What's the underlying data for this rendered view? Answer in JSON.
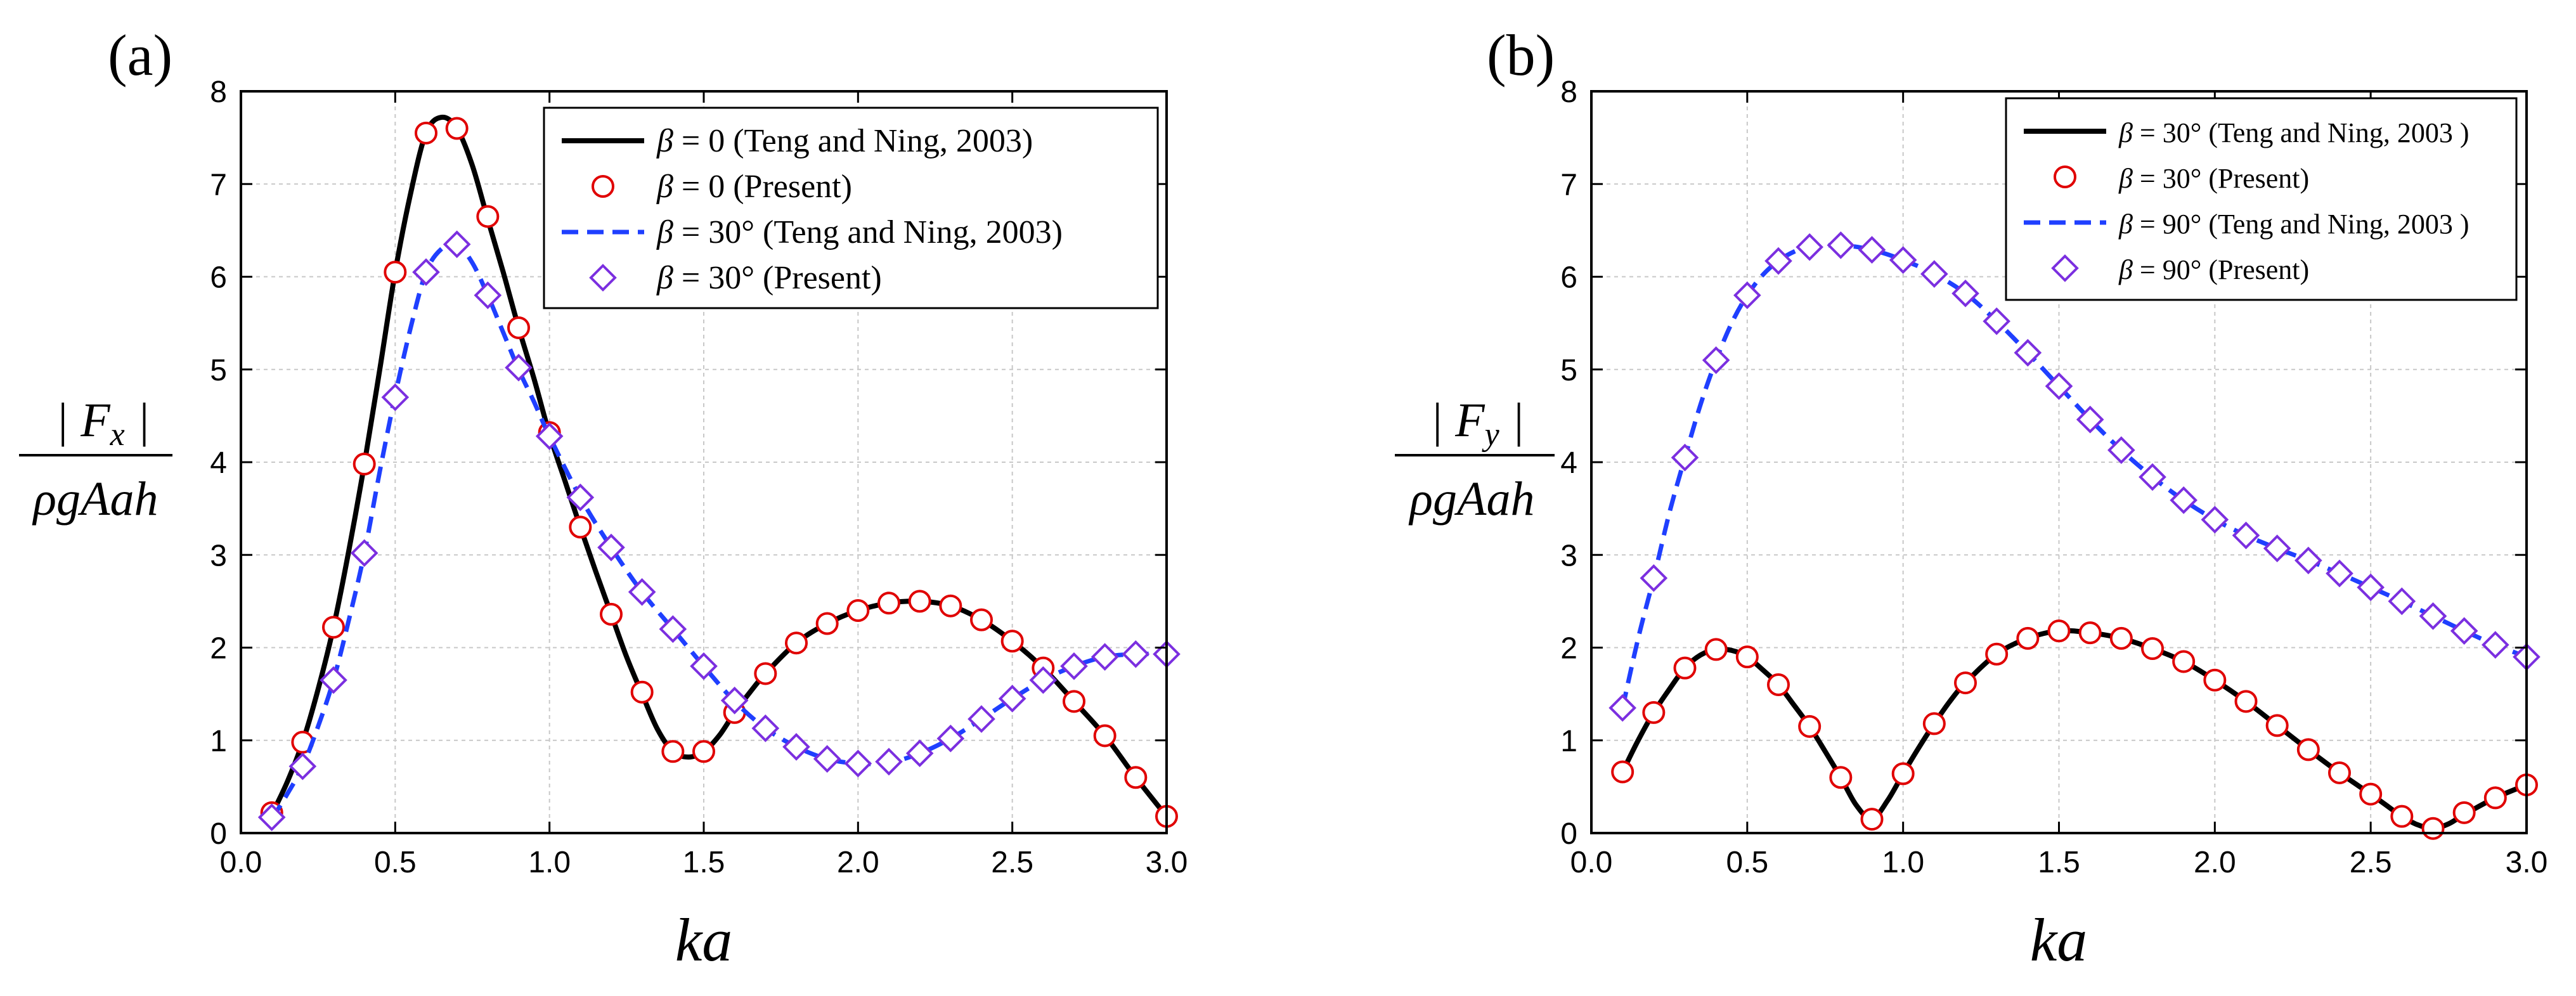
{
  "chart_data": [
    {
      "type": "line",
      "panel_label": "(a)",
      "xlabel": "ka",
      "ylabel": {
        "numerator": "| F",
        "subscript": "x",
        "numerator_end": " |",
        "denominator": "ρgAah"
      },
      "xlim": [
        0.0,
        3.0
      ],
      "ylim": [
        0,
        8
      ],
      "xticks": [
        "0.0",
        "0.5",
        "1.0",
        "1.5",
        "2.0",
        "2.5",
        "3.0"
      ],
      "yticks": [
        "0",
        "1",
        "2",
        "3",
        "4",
        "5",
        "6",
        "7",
        "8"
      ],
      "grid": true,
      "legend_position": "top-right",
      "legend": [
        {
          "symbol": "β",
          "text": " = 0 (Teng and Ning, 2003)"
        },
        {
          "symbol": "β",
          "text": " = 0 (Present)"
        },
        {
          "symbol": "β",
          "text": " = 30° (Teng and Ning, 2003)"
        },
        {
          "symbol": "β",
          "text": " = 30° (Present)"
        }
      ],
      "series": [
        {
          "name": "β = 0 (Teng and Ning, 2003)",
          "style": "line",
          "color": "#000000",
          "x": [
            0.1,
            0.15,
            0.2,
            0.25,
            0.3,
            0.35,
            0.4,
            0.45,
            0.5,
            0.55,
            0.6,
            0.65,
            0.7,
            0.75,
            0.8,
            0.85,
            0.9,
            0.95,
            1.0,
            1.05,
            1.1,
            1.15,
            1.2,
            1.25,
            1.3,
            1.35,
            1.4,
            1.45,
            1.5,
            1.55,
            1.6,
            1.65,
            1.7,
            1.8,
            1.9,
            2.0,
            2.1,
            2.2,
            2.3,
            2.4,
            2.5,
            2.6,
            2.7,
            2.8,
            2.9,
            3.0
          ],
          "y": [
            0.2,
            0.55,
            0.98,
            1.55,
            2.22,
            3.05,
            3.98,
            5.0,
            6.05,
            6.9,
            7.55,
            7.72,
            7.6,
            7.2,
            6.62,
            6.05,
            5.45,
            4.9,
            4.3,
            3.8,
            3.3,
            2.82,
            2.36,
            1.9,
            1.5,
            1.12,
            0.88,
            0.82,
            0.88,
            1.05,
            1.3,
            1.52,
            1.72,
            2.05,
            2.26,
            2.4,
            2.48,
            2.5,
            2.45,
            2.3,
            2.07,
            1.78,
            1.42,
            1.05,
            0.6,
            0.18
          ]
        },
        {
          "name": "β = 0 (Present)",
          "style": "circle",
          "color": "#e00000",
          "x": [
            0.1,
            0.2,
            0.3,
            0.4,
            0.5,
            0.6,
            0.7,
            0.8,
            0.9,
            1.0,
            1.1,
            1.2,
            1.3,
            1.4,
            1.5,
            1.6,
            1.7,
            1.8,
            1.9,
            2.0,
            2.1,
            2.2,
            2.3,
            2.4,
            2.5,
            2.6,
            2.7,
            2.8,
            2.9,
            3.0
          ],
          "y": [
            0.22,
            0.98,
            2.22,
            3.98,
            6.05,
            7.55,
            7.6,
            6.65,
            5.45,
            4.32,
            3.3,
            2.36,
            1.52,
            0.88,
            0.88,
            1.3,
            1.72,
            2.05,
            2.26,
            2.4,
            2.48,
            2.5,
            2.45,
            2.3,
            2.07,
            1.78,
            1.42,
            1.05,
            0.6,
            0.18
          ]
        },
        {
          "name": "β = 30° (Teng and Ning, 2003)",
          "style": "dash",
          "color": "#1f3fff",
          "x": [
            0.1,
            0.15,
            0.2,
            0.25,
            0.3,
            0.35,
            0.4,
            0.45,
            0.5,
            0.55,
            0.6,
            0.65,
            0.7,
            0.75,
            0.8,
            0.85,
            0.9,
            0.95,
            1.0,
            1.1,
            1.2,
            1.3,
            1.4,
            1.5,
            1.6,
            1.7,
            1.8,
            1.9,
            2.0,
            2.1,
            2.2,
            2.3,
            2.4,
            2.5,
            2.6,
            2.7,
            2.8,
            2.9,
            3.0
          ],
          "y": [
            0.15,
            0.42,
            0.72,
            1.15,
            1.65,
            2.3,
            3.02,
            3.9,
            4.72,
            5.45,
            6.05,
            6.3,
            6.35,
            6.15,
            5.8,
            5.4,
            5.0,
            4.65,
            4.28,
            3.62,
            3.08,
            2.6,
            2.2,
            1.8,
            1.42,
            1.13,
            0.93,
            0.8,
            0.75,
            0.76,
            0.86,
            1.02,
            1.23,
            1.45,
            1.65,
            1.8,
            1.9,
            1.93,
            1.93
          ]
        },
        {
          "name": "β = 30° (Present)",
          "style": "diamond",
          "color": "#7b2fe0",
          "x": [
            0.1,
            0.2,
            0.3,
            0.4,
            0.5,
            0.6,
            0.7,
            0.8,
            0.9,
            1.0,
            1.1,
            1.2,
            1.3,
            1.4,
            1.5,
            1.6,
            1.7,
            1.8,
            1.9,
            2.0,
            2.1,
            2.2,
            2.3,
            2.4,
            2.5,
            2.6,
            2.7,
            2.8,
            2.9,
            3.0
          ],
          "y": [
            0.17,
            0.72,
            1.65,
            3.02,
            4.7,
            6.05,
            6.35,
            5.8,
            5.02,
            4.28,
            3.62,
            3.08,
            2.6,
            2.2,
            1.8,
            1.43,
            1.13,
            0.93,
            0.8,
            0.75,
            0.77,
            0.86,
            1.02,
            1.23,
            1.45,
            1.65,
            1.8,
            1.9,
            1.93,
            1.93
          ]
        }
      ]
    },
    {
      "type": "line",
      "panel_label": "(b)",
      "xlabel": "ka",
      "ylabel": {
        "numerator": "| F",
        "subscript": "y",
        "numerator_end": " |",
        "denominator": "ρgAah"
      },
      "xlim": [
        0.0,
        3.0
      ],
      "ylim": [
        0,
        8
      ],
      "xticks": [
        "0.0",
        "0.5",
        "1.0",
        "1.5",
        "2.0",
        "2.5",
        "3.0"
      ],
      "yticks": [
        "0",
        "1",
        "2",
        "3",
        "4",
        "5",
        "6",
        "7",
        "8"
      ],
      "grid": true,
      "legend_position": "top-right",
      "legend": [
        {
          "symbol": "β",
          "text": " = 30° (Teng and Ning, 2003 )"
        },
        {
          "symbol": "β",
          "text": " = 30° (Present)"
        },
        {
          "symbol": "β",
          "text": " = 90° (Teng and Ning, 2003 )"
        },
        {
          "symbol": "β",
          "text": " = 90° (Present)"
        }
      ],
      "series": [
        {
          "name": "β = 30° (Teng and Ning, 2003 )",
          "style": "line",
          "color": "#000000",
          "x": [
            0.1,
            0.15,
            0.2,
            0.25,
            0.3,
            0.35,
            0.4,
            0.45,
            0.5,
            0.55,
            0.6,
            0.65,
            0.7,
            0.75,
            0.8,
            0.85,
            0.9,
            0.95,
            1.0,
            1.05,
            1.1,
            1.15,
            1.2,
            1.3,
            1.4,
            1.5,
            1.6,
            1.7,
            1.8,
            1.9,
            2.0,
            2.1,
            2.2,
            2.3,
            2.4,
            2.5,
            2.55,
            2.6,
            2.65,
            2.7,
            2.75,
            2.8,
            2.9,
            3.0
          ],
          "y": [
            0.66,
            1.0,
            1.3,
            1.55,
            1.78,
            1.92,
            1.98,
            1.97,
            1.9,
            1.76,
            1.6,
            1.38,
            1.15,
            0.88,
            0.6,
            0.3,
            0.15,
            0.35,
            0.64,
            0.92,
            1.18,
            1.42,
            1.62,
            1.93,
            2.1,
            2.18,
            2.16,
            2.1,
            1.99,
            1.85,
            1.65,
            1.42,
            1.16,
            0.9,
            0.65,
            0.42,
            0.3,
            0.18,
            0.09,
            0.05,
            0.1,
            0.2,
            0.38,
            0.52
          ]
        },
        {
          "name": "β = 30° (Present)",
          "style": "circle",
          "color": "#e00000",
          "x": [
            0.1,
            0.2,
            0.3,
            0.4,
            0.5,
            0.6,
            0.7,
            0.8,
            0.9,
            1.0,
            1.1,
            1.2,
            1.3,
            1.4,
            1.5,
            1.6,
            1.7,
            1.8,
            1.9,
            2.0,
            2.1,
            2.2,
            2.3,
            2.4,
            2.5,
            2.6,
            2.7,
            2.8,
            2.9,
            3.0
          ],
          "y": [
            0.66,
            1.3,
            1.78,
            1.98,
            1.9,
            1.6,
            1.15,
            0.6,
            0.15,
            0.64,
            1.18,
            1.62,
            1.93,
            2.1,
            2.18,
            2.16,
            2.1,
            1.99,
            1.85,
            1.65,
            1.42,
            1.16,
            0.9,
            0.65,
            0.42,
            0.18,
            0.05,
            0.22,
            0.38,
            0.52
          ]
        },
        {
          "name": "β = 90° (Teng and Ning, 2003 )",
          "style": "dash",
          "color": "#1f3fff",
          "x": [
            0.1,
            0.15,
            0.2,
            0.25,
            0.3,
            0.35,
            0.4,
            0.45,
            0.5,
            0.55,
            0.6,
            0.65,
            0.7,
            0.8,
            0.9,
            1.0,
            1.1,
            1.2,
            1.3,
            1.4,
            1.5,
            1.6,
            1.7,
            1.8,
            1.9,
            2.0,
            2.1,
            2.2,
            2.3,
            2.4,
            2.5,
            2.6,
            2.7,
            2.8,
            2.9,
            3.0
          ],
          "y": [
            1.35,
            2.1,
            2.75,
            3.45,
            4.05,
            4.62,
            5.1,
            5.5,
            5.8,
            6.02,
            6.17,
            6.27,
            6.32,
            6.34,
            6.29,
            6.18,
            6.03,
            5.82,
            5.52,
            5.18,
            4.82,
            4.46,
            4.13,
            3.84,
            3.59,
            3.38,
            3.21,
            3.07,
            2.94,
            2.8,
            2.65,
            2.5,
            2.34,
            2.18,
            2.03,
            1.9
          ]
        },
        {
          "name": "β = 90° (Present)",
          "style": "diamond",
          "color": "#7b2fe0",
          "x": [
            0.1,
            0.2,
            0.3,
            0.4,
            0.5,
            0.6,
            0.7,
            0.8,
            0.9,
            1.0,
            1.1,
            1.2,
            1.3,
            1.4,
            1.5,
            1.6,
            1.7,
            1.8,
            1.9,
            2.0,
            2.1,
            2.2,
            2.3,
            2.4,
            2.5,
            2.6,
            2.7,
            2.8,
            2.9,
            3.0
          ],
          "y": [
            1.35,
            2.75,
            4.05,
            5.1,
            5.8,
            6.17,
            6.32,
            6.34,
            6.29,
            6.18,
            6.03,
            5.82,
            5.52,
            5.18,
            4.82,
            4.46,
            4.13,
            3.84,
            3.59,
            3.38,
            3.21,
            3.07,
            2.94,
            2.8,
            2.65,
            2.5,
            2.34,
            2.18,
            2.03,
            1.9
          ]
        }
      ]
    }
  ]
}
